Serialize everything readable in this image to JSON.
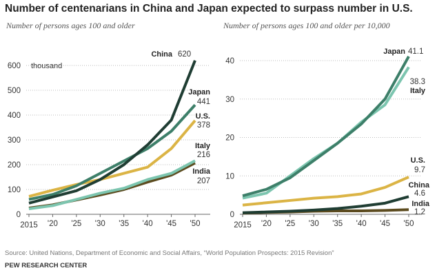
{
  "title": "Number of centenarians in China and Japan expected to surpass number in U.S.",
  "source": "Source: United Nations, Department of Economic and Social Affairs, “World Population Prospects: 2015 Revision”",
  "footer": "PEW RESEARCH CENTER",
  "chart_data": [
    {
      "type": "line",
      "subtitle": "Number of persons ages 100 and older",
      "unit_label": "thousand",
      "x": [
        2015,
        2020,
        2025,
        2030,
        2035,
        2040,
        2045,
        2050
      ],
      "x_tick_labels": [
        "2015",
        "'20",
        "'25",
        "'30",
        "'35",
        "'40",
        "'45",
        "'50"
      ],
      "ylim": [
        0,
        600
      ],
      "y_ticks": [
        0,
        100,
        200,
        300,
        400,
        500,
        600
      ],
      "grid": true,
      "series": [
        {
          "name": "China",
          "end_label": "620",
          "color": "#1f3d33",
          "values": [
            45,
            70,
            95,
            140,
            200,
            280,
            380,
            620
          ]
        },
        {
          "name": "Japan",
          "end_label": "441",
          "color": "#3d7f69",
          "values": [
            60,
            80,
            115,
            165,
            215,
            265,
            335,
            441
          ]
        },
        {
          "name": "U.S.",
          "end_label": "378",
          "color": "#dbb445",
          "values": [
            72,
            97,
            120,
            140,
            165,
            190,
            265,
            378
          ]
        },
        {
          "name": "Italy",
          "end_label": "216",
          "color": "#7cc5af",
          "values": [
            22,
            35,
            60,
            85,
            105,
            140,
            165,
            216
          ]
        },
        {
          "name": "India",
          "end_label": "207",
          "color": "#5c4b1f",
          "values": [
            25,
            38,
            58,
            78,
            100,
            130,
            158,
            207
          ]
        }
      ]
    },
    {
      "type": "line",
      "subtitle": "Number of persons ages 100 and older per 10,000",
      "x": [
        2015,
        2020,
        2025,
        2030,
        2035,
        2040,
        2045,
        2050
      ],
      "x_tick_labels": [
        "2015",
        "'20",
        "'25",
        "'30",
        "'35",
        "'40",
        "'45",
        "'50"
      ],
      "ylim": [
        0,
        40
      ],
      "y_ticks": [
        0,
        10,
        20,
        30,
        40
      ],
      "grid": true,
      "series": [
        {
          "name": "Japan",
          "end_label": "41.1",
          "color": "#3d7f69",
          "values": [
            4.8,
            6.5,
            9.5,
            14,
            18.5,
            23.5,
            30,
            41.1
          ]
        },
        {
          "name": "Italy",
          "end_label": "38.3",
          "color": "#7cc5af",
          "values": [
            4.2,
            5.5,
            10,
            14.5,
            18.5,
            24,
            28.5,
            38.3
          ]
        },
        {
          "name": "U.S.",
          "end_label": "9.7",
          "color": "#dbb445",
          "values": [
            2.4,
            3,
            3.6,
            4.2,
            4.6,
            5.3,
            7,
            9.7
          ]
        },
        {
          "name": "China",
          "end_label": "4.6",
          "color": "#1f3d33",
          "values": [
            0.4,
            0.6,
            0.8,
            1.1,
            1.5,
            2.1,
            2.9,
            4.6
          ]
        },
        {
          "name": "India",
          "end_label": "1.2",
          "color": "#5c4b1f",
          "values": [
            0.3,
            0.5,
            0.6,
            0.8,
            0.9,
            0.9,
            1.0,
            1.2
          ]
        }
      ]
    }
  ]
}
